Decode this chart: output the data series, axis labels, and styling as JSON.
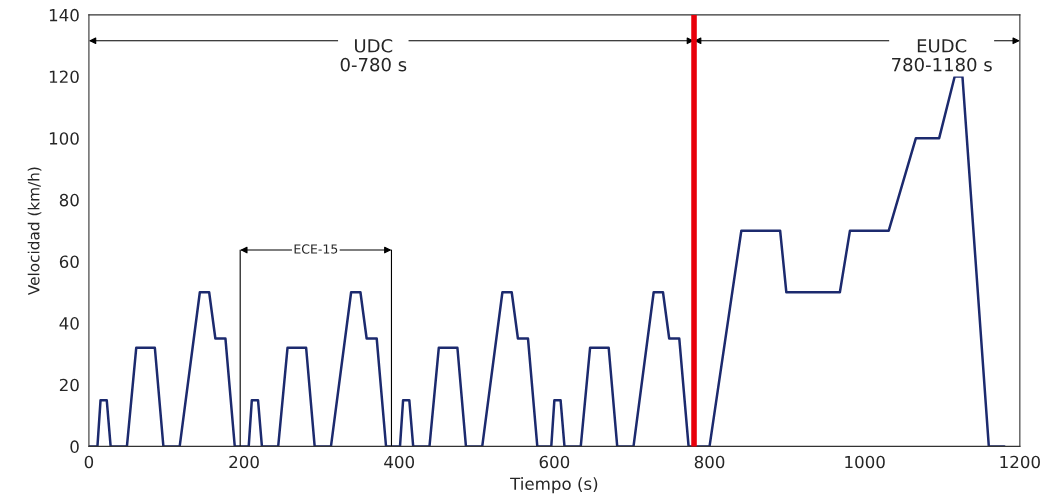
{
  "chart_data": {
    "type": "line",
    "xlabel": "Tiempo (s)",
    "ylabel": "Velocidad (km/h)",
    "x": [
      0,
      11,
      15,
      23,
      28,
      49,
      61,
      85,
      96,
      117,
      143,
      155,
      163,
      176,
      188,
      195,
      206,
      210,
      218,
      223,
      244,
      256,
      280,
      291,
      312,
      338,
      350,
      358,
      371,
      383,
      390,
      401,
      405,
      413,
      418,
      439,
      451,
      475,
      486,
      507,
      533,
      545,
      553,
      566,
      578,
      585,
      596,
      600,
      608,
      613,
      634,
      646,
      670,
      681,
      702,
      728,
      740,
      748,
      761,
      773,
      780,
      800,
      841,
      891,
      899,
      968,
      981,
      1031,
      1066,
      1096,
      1116,
      1126,
      1160,
      1180
    ],
    "series": [
      {
        "color": "#1c2a6e",
        "values": [
          0,
          0,
          15,
          15,
          0,
          0,
          32,
          32,
          0,
          0,
          50,
          50,
          35,
          35,
          0,
          0,
          0,
          15,
          15,
          0,
          0,
          32,
          32,
          0,
          0,
          50,
          50,
          35,
          35,
          0,
          0,
          0,
          15,
          15,
          0,
          0,
          32,
          32,
          0,
          0,
          50,
          50,
          35,
          35,
          0,
          0,
          0,
          15,
          15,
          0,
          0,
          32,
          32,
          0,
          0,
          50,
          50,
          35,
          35,
          0,
          0,
          0,
          70,
          70,
          50,
          50,
          70,
          70,
          100,
          100,
          120,
          120,
          0,
          0
        ]
      }
    ],
    "xlim": [
      0,
      1200
    ],
    "ylim": [
      0,
      140
    ],
    "xticks": [
      0,
      200,
      400,
      600,
      800,
      1000,
      1200
    ],
    "yticks": [
      0,
      20,
      40,
      60,
      80,
      100,
      120,
      140
    ],
    "grid": false,
    "legend": false,
    "marker": "none",
    "line_style": "solid",
    "ref_lines": [
      {
        "axis": "x",
        "value": 780,
        "color": "#e8000b"
      },
      {
        "axis": "x",
        "value": 195,
        "color": "#000000"
      },
      {
        "axis": "x",
        "value": 390,
        "color": "#000000"
      }
    ],
    "annotations": [
      "UDC\n0-780 s",
      "EUDC\n780-1180 s",
      "ECE-15"
    ]
  }
}
